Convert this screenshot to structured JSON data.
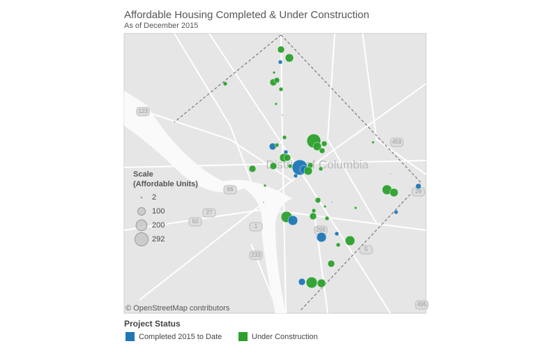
{
  "header": {
    "title": "Affordable Housing Completed & Under Construction",
    "subtitle": "As of December 2015"
  },
  "map": {
    "place_label": "District of Columbia",
    "road_shields": [
      "123",
      "459",
      "29",
      "66",
      "50",
      "1",
      "295",
      "233",
      "5",
      "495",
      "27"
    ],
    "attribution": "© OpenStreetMap contributors"
  },
  "size_legend": {
    "title": "Scale",
    "subtitle": "(Affordable Units)",
    "values": [
      2,
      100,
      200,
      292
    ]
  },
  "status_legend": {
    "title": "Project Status",
    "items": [
      {
        "name": "Completed 2015 to Date",
        "color": "#1f77b4"
      },
      {
        "name": "Under Construction",
        "color": "#2ca02c"
      }
    ]
  }
}
